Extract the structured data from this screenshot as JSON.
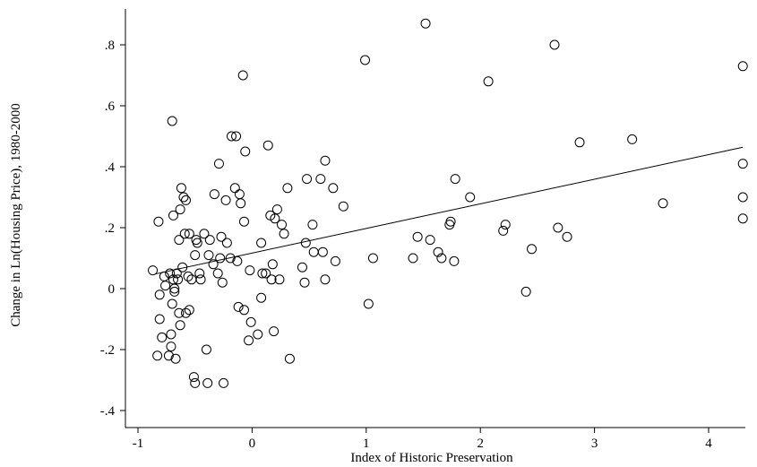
{
  "chart_data": {
    "type": "scatter",
    "title": "",
    "xlabel": "Index of Historic Preservation",
    "ylabel": "Change in Ln(Housing Price), 1980-2000",
    "xlim": [
      -1.05,
      4.35
    ],
    "ylim": [
      -0.43,
      0.93
    ],
    "x_ticks": [
      -1,
      0,
      1,
      2,
      3,
      4
    ],
    "x_tick_labels": [
      "-1",
      "0",
      "1",
      "2",
      "3",
      "4"
    ],
    "y_ticks": [
      -0.4,
      -0.2,
      0,
      0.2,
      0.4,
      0.6,
      0.8
    ],
    "y_tick_labels": [
      "-.4",
      "-.2",
      "0",
      ".2",
      ".4",
      ".6",
      ".8"
    ],
    "grid": false,
    "marker": "hollow-circle",
    "fit_line": {
      "x": [
        -0.85,
        4.3
      ],
      "y": [
        0.048,
        0.464
      ]
    },
    "points": [
      [
        -0.87,
        0.06
      ],
      [
        -0.83,
        -0.22
      ],
      [
        -0.82,
        0.22
      ],
      [
        -0.81,
        -0.02
      ],
      [
        -0.81,
        -0.1
      ],
      [
        -0.79,
        -0.16
      ],
      [
        -0.77,
        0.04
      ],
      [
        -0.76,
        0.01
      ],
      [
        -0.73,
        -0.22
      ],
      [
        -0.72,
        0.05
      ],
      [
        -0.71,
        -0.15
      ],
      [
        -0.71,
        -0.19
      ],
      [
        -0.7,
        0.55
      ],
      [
        -0.7,
        -0.05
      ],
      [
        -0.69,
        0.03
      ],
      [
        -0.69,
        0.24
      ],
      [
        -0.68,
        0.0
      ],
      [
        -0.68,
        -0.01
      ],
      [
        -0.67,
        -0.23
      ],
      [
        -0.66,
        0.05
      ],
      [
        -0.65,
        0.03
      ],
      [
        -0.64,
        0.16
      ],
      [
        -0.64,
        -0.08
      ],
      [
        -0.63,
        -0.12
      ],
      [
        -0.63,
        0.26
      ],
      [
        -0.62,
        0.33
      ],
      [
        -0.61,
        0.07
      ],
      [
        -0.6,
        0.3
      ],
      [
        -0.59,
        0.18
      ],
      [
        -0.58,
        0.29
      ],
      [
        -0.58,
        -0.08
      ],
      [
        -0.56,
        0.04
      ],
      [
        -0.55,
        0.18
      ],
      [
        -0.55,
        -0.07
      ],
      [
        -0.53,
        0.03
      ],
      [
        -0.51,
        -0.29
      ],
      [
        -0.5,
        -0.31
      ],
      [
        -0.5,
        0.11
      ],
      [
        -0.49,
        0.16
      ],
      [
        -0.48,
        0.15
      ],
      [
        -0.46,
        0.05
      ],
      [
        -0.45,
        0.03
      ],
      [
        -0.42,
        0.18
      ],
      [
        -0.4,
        -0.2
      ],
      [
        -0.39,
        -0.31
      ],
      [
        -0.38,
        0.11
      ],
      [
        -0.37,
        0.16
      ],
      [
        -0.34,
        0.08
      ],
      [
        -0.33,
        0.31
      ],
      [
        -0.3,
        0.05
      ],
      [
        -0.29,
        0.41
      ],
      [
        -0.28,
        0.1
      ],
      [
        -0.27,
        0.17
      ],
      [
        -0.26,
        0.02
      ],
      [
        -0.25,
        -0.31
      ],
      [
        -0.23,
        0.29
      ],
      [
        -0.22,
        0.15
      ],
      [
        -0.19,
        0.1
      ],
      [
        -0.18,
        0.5
      ],
      [
        -0.15,
        0.33
      ],
      [
        -0.14,
        0.5
      ],
      [
        -0.13,
        0.09
      ],
      [
        -0.12,
        -0.06
      ],
      [
        -0.11,
        0.31
      ],
      [
        -0.1,
        0.28
      ],
      [
        -0.08,
        0.7
      ],
      [
        -0.07,
        0.22
      ],
      [
        -0.07,
        -0.07
      ],
      [
        -0.06,
        0.45
      ],
      [
        -0.03,
        -0.17
      ],
      [
        -0.02,
        0.06
      ],
      [
        -0.01,
        -0.11
      ],
      [
        0.05,
        -0.15
      ],
      [
        0.08,
        0.15
      ],
      [
        0.08,
        -0.03
      ],
      [
        0.09,
        0.05
      ],
      [
        0.12,
        0.05
      ],
      [
        0.14,
        0.47
      ],
      [
        0.16,
        0.24
      ],
      [
        0.17,
        0.03
      ],
      [
        0.18,
        0.08
      ],
      [
        0.19,
        -0.14
      ],
      [
        0.2,
        0.23
      ],
      [
        0.22,
        0.26
      ],
      [
        0.24,
        0.03
      ],
      [
        0.26,
        0.21
      ],
      [
        0.28,
        0.18
      ],
      [
        0.31,
        0.33
      ],
      [
        0.33,
        -0.23
      ],
      [
        0.44,
        0.07
      ],
      [
        0.46,
        0.02
      ],
      [
        0.47,
        0.15
      ],
      [
        0.48,
        0.36
      ],
      [
        0.53,
        0.21
      ],
      [
        0.54,
        0.12
      ],
      [
        0.6,
        0.36
      ],
      [
        0.62,
        0.12
      ],
      [
        0.64,
        0.03
      ],
      [
        0.64,
        0.42
      ],
      [
        0.71,
        0.33
      ],
      [
        0.73,
        0.09
      ],
      [
        0.8,
        0.27
      ],
      [
        0.99,
        0.75
      ],
      [
        1.02,
        -0.05
      ],
      [
        1.06,
        0.1
      ],
      [
        1.41,
        0.1
      ],
      [
        1.45,
        0.17
      ],
      [
        1.52,
        0.87
      ],
      [
        1.56,
        0.16
      ],
      [
        1.63,
        0.12
      ],
      [
        1.66,
        0.1
      ],
      [
        1.73,
        0.21
      ],
      [
        1.74,
        0.22
      ],
      [
        1.77,
        0.09
      ],
      [
        1.78,
        0.36
      ],
      [
        1.91,
        0.3
      ],
      [
        2.07,
        0.68
      ],
      [
        2.2,
        0.19
      ],
      [
        2.22,
        0.21
      ],
      [
        2.4,
        -0.01
      ],
      [
        2.45,
        0.13
      ],
      [
        2.65,
        0.8
      ],
      [
        2.68,
        0.2
      ],
      [
        2.76,
        0.17
      ],
      [
        2.87,
        0.48
      ],
      [
        3.33,
        0.49
      ],
      [
        3.6,
        0.28
      ],
      [
        4.3,
        0.73
      ],
      [
        4.3,
        0.41
      ],
      [
        4.3,
        0.3
      ],
      [
        4.3,
        0.23
      ]
    ]
  }
}
